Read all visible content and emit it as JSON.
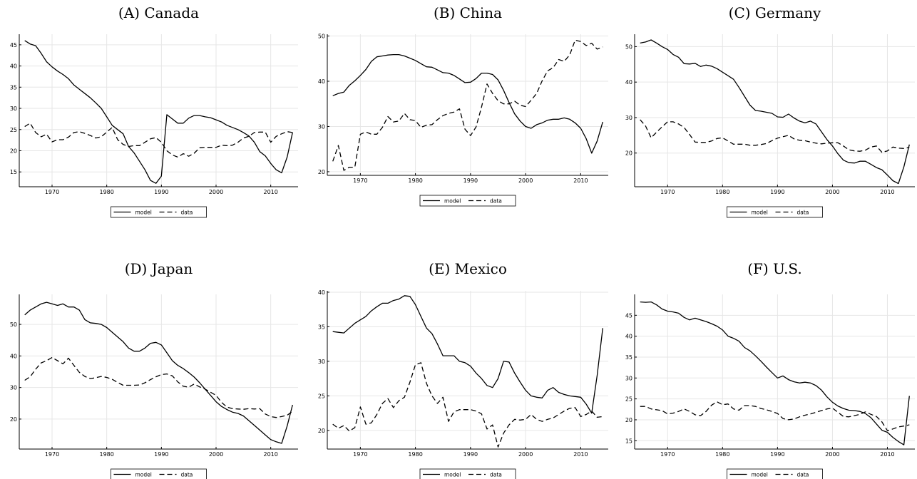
{
  "chart_data": [
    {
      "type": "line",
      "title": "(A) Canada",
      "xlim": [
        1964,
        2015
      ],
      "ylim": [
        11.5,
        47.5
      ],
      "xticks": [
        1970,
        1980,
        1990,
        2000,
        2010
      ],
      "yticks": [
        15,
        20,
        25,
        30,
        35,
        40,
        45
      ],
      "legend": "bottom-center",
      "grid": true,
      "x": [
        1965,
        1966,
        1967,
        1968,
        1969,
        1970,
        1971,
        1972,
        1973,
        1974,
        1975,
        1976,
        1977,
        1978,
        1979,
        1980,
        1981,
        1982,
        1983,
        1984,
        1985,
        1986,
        1987,
        1988,
        1989,
        1990,
        1991,
        1992,
        1993,
        1994,
        1995,
        1996,
        1997,
        1998,
        1999,
        2000,
        2001,
        2002,
        2003,
        2004,
        2005,
        2006,
        2007,
        2008,
        2009,
        2010,
        2011,
        2012,
        2013,
        2014
      ],
      "series": [
        {
          "name": "model",
          "style": "solid",
          "values": [
            46,
            45.2,
            44.8,
            43,
            41,
            39.8,
            38.8,
            38,
            37,
            35.5,
            34.5,
            33.5,
            32.5,
            31.3,
            30,
            28,
            26,
            25,
            24,
            21,
            19.5,
            17.5,
            15.5,
            13,
            12.3,
            14,
            28.5,
            27.5,
            26.5,
            26.5,
            27.7,
            28.3,
            28.3,
            28,
            27.8,
            27.3,
            26.8,
            26,
            25.5,
            25,
            24.3,
            23.5,
            22,
            19.8,
            18.8,
            17,
            15.5,
            14.8,
            18.5,
            24.3
          ]
        },
        {
          "name": "data",
          "style": "dashed",
          "values": [
            25.7,
            26.5,
            24.3,
            23.3,
            23.9,
            22.1,
            22.6,
            22.6,
            23.2,
            24.3,
            24.5,
            24.1,
            23.6,
            23,
            23.3,
            24.4,
            25.5,
            22.6,
            21.5,
            21,
            21.2,
            21.2,
            22,
            22.8,
            23.1,
            22,
            20,
            19,
            18.5,
            19.3,
            18.7,
            19.4,
            20.7,
            20.8,
            20.8,
            20.8,
            21.3,
            21.2,
            21.3,
            22,
            23,
            23.4,
            24.3,
            24.4,
            24.4,
            22,
            23.4,
            24,
            24.5,
            24.3
          ]
        }
      ]
    },
    {
      "type": "line",
      "title": "(B) China",
      "xlim": [
        1964,
        2015
      ],
      "ylim": [
        19.2,
        50.4
      ],
      "xticks": [
        1970,
        1980,
        1990,
        2000,
        2010
      ],
      "yticks": [
        20,
        30,
        40,
        50
      ],
      "legend": "bottom-center",
      "grid": true,
      "x": [
        1965,
        1966,
        1967,
        1968,
        1969,
        1970,
        1971,
        1972,
        1973,
        1974,
        1975,
        1976,
        1977,
        1978,
        1979,
        1980,
        1981,
        1982,
        1983,
        1984,
        1985,
        1986,
        1987,
        1988,
        1989,
        1990,
        1991,
        1992,
        1993,
        1994,
        1995,
        1996,
        1997,
        1998,
        1999,
        2000,
        2001,
        2002,
        2003,
        2004,
        2005,
        2006,
        2007,
        2008,
        2009,
        2010,
        2011,
        2012,
        2013,
        2014
      ],
      "series": [
        {
          "name": "model",
          "style": "solid",
          "values": [
            36.8,
            37.3,
            37.6,
            39.1,
            40.1,
            41.3,
            42.6,
            44.4,
            45.4,
            45.6,
            45.8,
            45.9,
            45.9,
            45.6,
            45.1,
            44.6,
            43.9,
            43.2,
            43.1,
            42.5,
            41.9,
            41.8,
            41.3,
            40.5,
            39.7,
            39.8,
            40.6,
            41.8,
            41.8,
            41.5,
            40.3,
            38,
            35.3,
            32.8,
            31.2,
            30,
            29.6,
            30.4,
            30.8,
            31.4,
            31.6,
            31.6,
            31.9,
            31.6,
            30.8,
            29.6,
            27.3,
            24.1,
            26.8,
            31
          ]
        },
        {
          "name": "data",
          "style": "dashed",
          "values": [
            22.3,
            25.8,
            20.3,
            21,
            21,
            28.3,
            28.8,
            28.3,
            28.3,
            29.8,
            32.2,
            31,
            31.2,
            32.9,
            31.5,
            31.3,
            29.8,
            30.3,
            30.4,
            31.5,
            32.4,
            32.9,
            33.2,
            33.9,
            29.4,
            28,
            29.9,
            34.3,
            39.4,
            37.3,
            35.7,
            35,
            35,
            35.6,
            34.7,
            34.4,
            35.8,
            37.3,
            40.1,
            42.3,
            43,
            44.8,
            44.4,
            45.8,
            49.1,
            48.8,
            47.9,
            48.4,
            47.1,
            47.6
          ]
        }
      ]
    },
    {
      "type": "line",
      "title": "(C) Germany",
      "xlim": [
        1964,
        2015
      ],
      "ylim": [
        10.5,
        53.5
      ],
      "xticks": [
        1970,
        1980,
        1990,
        2000,
        2010
      ],
      "yticks": [
        20,
        30,
        40,
        50
      ],
      "legend": "bottom-center",
      "grid": true,
      "x": [
        1965,
        1966,
        1967,
        1968,
        1969,
        1970,
        1971,
        1972,
        1973,
        1974,
        1975,
        1976,
        1977,
        1978,
        1979,
        1980,
        1981,
        1982,
        1983,
        1984,
        1985,
        1986,
        1987,
        1988,
        1989,
        1990,
        1991,
        1992,
        1993,
        1994,
        1995,
        1996,
        1997,
        1998,
        1999,
        2000,
        2001,
        2002,
        2003,
        2004,
        2005,
        2006,
        2007,
        2008,
        2009,
        2010,
        2011,
        2012,
        2013,
        2014
      ],
      "series": [
        {
          "name": "model",
          "style": "solid",
          "values": [
            51,
            51.3,
            51.9,
            51,
            50,
            49.2,
            47.8,
            47,
            45.2,
            45.1,
            45.3,
            44.4,
            44.8,
            44.5,
            43.8,
            42.8,
            41.8,
            40.8,
            38.5,
            36,
            33.5,
            32,
            31.8,
            31.5,
            31.2,
            30.2,
            30.1,
            31,
            29.9,
            29,
            28.5,
            29,
            28.2,
            26,
            23.8,
            22,
            19.8,
            18,
            17.3,
            17.2,
            17.7,
            17.7,
            16.8,
            15.9,
            15.3,
            13.8,
            12.2,
            11.4,
            16.1,
            22.4
          ]
        },
        {
          "name": "data",
          "style": "dashed",
          "values": [
            29.4,
            27.6,
            24.3,
            25.9,
            27.4,
            28.8,
            28.8,
            28.2,
            27.2,
            25.2,
            23.1,
            23,
            23,
            23.4,
            24.1,
            24.3,
            23.4,
            22.5,
            22.5,
            22.5,
            22.2,
            22.2,
            22.4,
            22.7,
            23.5,
            24.2,
            24.6,
            25,
            24,
            23.6,
            23.5,
            23.1,
            22.8,
            22.6,
            22.8,
            22.9,
            22.9,
            22,
            20.9,
            20.6,
            20.5,
            20.8,
            21.7,
            22,
            20.2,
            20.6,
            21.7,
            21.4,
            21.3,
            21.6
          ]
        }
      ]
    },
    {
      "type": "line",
      "title": "(D) Japan",
      "xlim": [
        1964,
        2015
      ],
      "ylim": [
        10.5,
        59.5
      ],
      "xticks": [
        1970,
        1980,
        1990,
        2000,
        2010
      ],
      "yticks": [
        20,
        30,
        40,
        50
      ],
      "legend": "bottom-center",
      "grid": true,
      "x": [
        1965,
        1966,
        1967,
        1968,
        1969,
        1970,
        1971,
        1972,
        1973,
        1974,
        1975,
        1976,
        1977,
        1978,
        1979,
        1980,
        1981,
        1982,
        1983,
        1984,
        1985,
        1986,
        1987,
        1988,
        1989,
        1990,
        1991,
        1992,
        1993,
        1994,
        1995,
        1996,
        1997,
        1998,
        1999,
        2000,
        2001,
        2002,
        2003,
        2004,
        2005,
        2006,
        2007,
        2008,
        2009,
        2010,
        2011,
        2012,
        2013,
        2014
      ],
      "series": [
        {
          "name": "model",
          "style": "solid",
          "values": [
            53,
            54.5,
            55.5,
            56.5,
            57,
            56.5,
            56,
            56.5,
            55.5,
            55.5,
            54.5,
            51.5,
            50.5,
            50.3,
            50,
            49,
            47.5,
            46,
            44.5,
            42.5,
            41.5,
            41.5,
            42.5,
            44,
            44.3,
            43.5,
            41,
            38.5,
            37,
            36,
            34.7,
            33.3,
            31.5,
            29.5,
            27.5,
            25.5,
            24,
            23,
            22.2,
            21.8,
            21,
            19.5,
            18,
            16.5,
            15,
            13.5,
            12.8,
            12.3,
            17.8,
            24.5
          ]
        },
        {
          "name": "data",
          "style": "dashed",
          "values": [
            32.3,
            33.4,
            35.8,
            37.8,
            38.5,
            39.5,
            38.5,
            37.5,
            39.3,
            37,
            34.8,
            33.5,
            32.8,
            33.1,
            33.5,
            33.2,
            32.6,
            31.6,
            30.7,
            30.7,
            30.7,
            30.8,
            31.5,
            32.5,
            33.4,
            34.1,
            34.3,
            33.7,
            31.8,
            30.4,
            30.1,
            31.1,
            30.2,
            29.5,
            28.5,
            27.5,
            25.3,
            23.8,
            23.3,
            23.2,
            23.1,
            23.3,
            23.2,
            23.3,
            21.6,
            20.8,
            20.5,
            20.8,
            21.2,
            22.5
          ]
        }
      ]
    },
    {
      "type": "line",
      "title": "(E) Mexico",
      "xlim": [
        1964,
        2015
      ],
      "ylim": [
        17.3,
        40.2
      ],
      "xticks": [
        1970,
        1980,
        1990,
        2000,
        2010
      ],
      "yticks": [
        20,
        25,
        30,
        35,
        40
      ],
      "legend": "bottom-center",
      "grid": true,
      "x": [
        1965,
        1966,
        1967,
        1968,
        1969,
        1970,
        1971,
        1972,
        1973,
        1974,
        1975,
        1976,
        1977,
        1978,
        1979,
        1980,
        1981,
        1982,
        1983,
        1984,
        1985,
        1986,
        1987,
        1988,
        1989,
        1990,
        1991,
        1992,
        1993,
        1994,
        1995,
        1996,
        1997,
        1998,
        1999,
        2000,
        2001,
        2002,
        2003,
        2004,
        2005,
        2006,
        2007,
        2008,
        2009,
        2010,
        2011,
        2012,
        2013,
        2014
      ],
      "series": [
        {
          "name": "model",
          "style": "solid",
          "values": [
            34.3,
            34.2,
            34.1,
            34.8,
            35.5,
            36,
            36.5,
            37.3,
            37.9,
            38.4,
            38.4,
            38.8,
            39,
            39.5,
            39.4,
            38.2,
            36.5,
            34.8,
            34,
            32.5,
            30.8,
            30.8,
            30.8,
            30,
            29.8,
            29.3,
            28.3,
            27.5,
            26.5,
            26.2,
            27.5,
            30,
            29.9,
            28.3,
            27,
            25.8,
            25,
            24.8,
            24.7,
            25.8,
            26.2,
            25.5,
            25.2,
            25,
            24.9,
            24.8,
            23.8,
            22.5,
            28,
            34.8
          ]
        },
        {
          "name": "data",
          "style": "dashed",
          "values": [
            20.9,
            20.3,
            20.7,
            19.9,
            20.4,
            23.4,
            20.9,
            21.1,
            22.3,
            23.9,
            24.6,
            23.3,
            24.3,
            24.8,
            27,
            29.5,
            29.8,
            26.8,
            25,
            23.9,
            24.8,
            21.3,
            22.7,
            23,
            23,
            23,
            22.8,
            22.4,
            20.2,
            20.8,
            17.6,
            19.6,
            20.8,
            21.6,
            21.5,
            21.6,
            22.3,
            21.6,
            21.3,
            21.6,
            21.8,
            22.3,
            22.8,
            23.2,
            23.3,
            22,
            22.3,
            22.8,
            21.9,
            22
          ]
        }
      ]
    },
    {
      "type": "line",
      "title": "(F) U.S.",
      "xlim": [
        1964,
        2015
      ],
      "ylim": [
        13,
        50
      ],
      "xticks": [
        1970,
        1980,
        1990,
        2000,
        2010
      ],
      "yticks": [
        15,
        20,
        25,
        30,
        35,
        40,
        45
      ],
      "legend": "bottom-center",
      "grid": true,
      "x": [
        1965,
        1966,
        1967,
        1968,
        1969,
        1970,
        1971,
        1972,
        1973,
        1974,
        1975,
        1976,
        1977,
        1978,
        1979,
        1980,
        1981,
        1982,
        1983,
        1984,
        1985,
        1986,
        1987,
        1988,
        1989,
        1990,
        1991,
        1992,
        1993,
        1994,
        1995,
        1996,
        1997,
        1998,
        1999,
        2000,
        2001,
        2002,
        2003,
        2004,
        2005,
        2006,
        2007,
        2008,
        2009,
        2010,
        2011,
        2012,
        2013,
        2014
      ],
      "series": [
        {
          "name": "model",
          "style": "solid",
          "values": [
            48.2,
            48.1,
            48.2,
            47.5,
            46.5,
            46,
            45.8,
            45.5,
            44.5,
            43.9,
            44.3,
            43.9,
            43.5,
            43,
            42.4,
            41.5,
            40,
            39.5,
            38.8,
            37.3,
            36.5,
            35.3,
            34,
            32.6,
            31.3,
            30,
            30.5,
            29.6,
            29.1,
            28.8,
            29,
            28.8,
            28.2,
            27.1,
            25.5,
            24.2,
            23.3,
            22.7,
            22.3,
            22.2,
            22,
            21.5,
            20.5,
            19,
            17.5,
            17,
            15.8,
            14.8,
            14,
            25.7
          ]
        },
        {
          "name": "data",
          "style": "dashed",
          "values": [
            23.2,
            23.2,
            22.6,
            22.4,
            22.2,
            21.4,
            21.6,
            22,
            22.6,
            22,
            21.2,
            21,
            22,
            23.5,
            24.3,
            23.6,
            23.8,
            22.6,
            22.3,
            23.4,
            23.4,
            23.2,
            22.7,
            22.4,
            22,
            21.5,
            20.3,
            20,
            20.2,
            20.7,
            21.1,
            21.4,
            21.8,
            22.2,
            22.6,
            22.8,
            21.8,
            20.8,
            20.7,
            21,
            21.3,
            21.9,
            21.3,
            20.8,
            19.5,
            17.4,
            17.8,
            18.3,
            18.5,
            18.8
          ]
        }
      ]
    }
  ]
}
